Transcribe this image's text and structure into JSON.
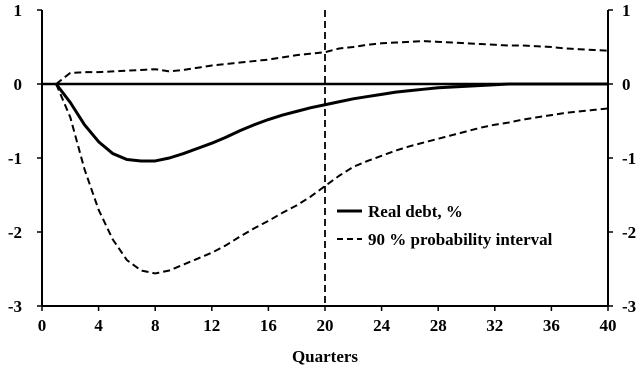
{
  "chart_data": {
    "type": "line",
    "title": "",
    "xlabel": "Quarters",
    "ylabel": "",
    "xlim": [
      0,
      40
    ],
    "ylim": [
      -3,
      1
    ],
    "x_ticks": [
      0,
      4,
      8,
      12,
      16,
      20,
      24,
      28,
      32,
      36,
      40
    ],
    "y_ticks": [
      1,
      0,
      -1,
      -2,
      -3
    ],
    "y_tick_labels_left": [
      "1",
      "0",
      "-1",
      "-2",
      "-3"
    ],
    "y_tick_labels_right": [
      "1",
      "0",
      "-1",
      "-2",
      "-3"
    ],
    "grid": false,
    "legend_position": "lower-right",
    "reference_lines": {
      "horizontal_zero": 0,
      "vertical_dashed_x": 20
    },
    "series": [
      {
        "name": "Real debt, %",
        "style": "solid",
        "color": "#000000",
        "x": [
          1,
          2,
          3,
          4,
          5,
          6,
          7,
          8,
          9,
          10,
          11,
          12,
          13,
          14,
          15,
          16,
          17,
          18,
          19,
          20,
          21,
          22,
          23,
          24,
          25,
          26,
          27,
          28,
          29,
          30,
          31,
          32,
          33,
          34,
          35,
          36,
          37,
          38,
          39,
          40
        ],
        "y": [
          0,
          -0.25,
          -0.55,
          -0.78,
          -0.94,
          -1.02,
          -1.04,
          -1.04,
          -1.0,
          -0.94,
          -0.87,
          -0.8,
          -0.72,
          -0.63,
          -0.55,
          -0.48,
          -0.42,
          -0.37,
          -0.32,
          -0.28,
          -0.24,
          -0.2,
          -0.17,
          -0.14,
          -0.11,
          -0.09,
          -0.07,
          -0.05,
          -0.04,
          -0.03,
          -0.02,
          -0.01,
          0,
          0,
          0,
          0,
          0,
          0,
          0,
          0
        ]
      },
      {
        "name": "90 % probability interval",
        "style": "dashed",
        "color": "#000000",
        "x": [
          1,
          2,
          3,
          4,
          5,
          6,
          7,
          8,
          9,
          10,
          11,
          12,
          13,
          14,
          15,
          16,
          17,
          18,
          19,
          20,
          21,
          22,
          23,
          24,
          25,
          26,
          27,
          28,
          29,
          30,
          31,
          32,
          33,
          34,
          35,
          36,
          37,
          38,
          39,
          40
        ],
        "y": [
          0,
          0.15,
          0.16,
          0.16,
          0.17,
          0.18,
          0.19,
          0.2,
          0.17,
          0.19,
          0.22,
          0.25,
          0.27,
          0.29,
          0.31,
          0.33,
          0.36,
          0.39,
          0.41,
          0.43,
          0.48,
          0.5,
          0.53,
          0.55,
          0.56,
          0.57,
          0.58,
          0.57,
          0.56,
          0.55,
          0.54,
          0.53,
          0.52,
          0.52,
          0.51,
          0.5,
          0.48,
          0.47,
          0.46,
          0.45
        ]
      },
      {
        "name": "",
        "style": "dashed",
        "color": "#000000",
        "x": [
          1,
          2,
          3,
          4,
          5,
          6,
          7,
          8,
          9,
          10,
          11,
          12,
          13,
          14,
          15,
          16,
          17,
          18,
          19,
          20,
          21,
          22,
          23,
          24,
          25,
          26,
          27,
          28,
          29,
          30,
          31,
          32,
          33,
          34,
          35,
          36,
          37,
          38,
          39,
          40
        ],
        "y": [
          0,
          -0.45,
          -1.15,
          -1.7,
          -2.1,
          -2.38,
          -2.52,
          -2.56,
          -2.52,
          -2.44,
          -2.36,
          -2.28,
          -2.18,
          -2.06,
          -1.95,
          -1.85,
          -1.74,
          -1.64,
          -1.52,
          -1.38,
          -1.24,
          -1.12,
          -1.04,
          -0.97,
          -0.9,
          -0.84,
          -0.79,
          -0.74,
          -0.69,
          -0.64,
          -0.59,
          -0.55,
          -0.52,
          -0.48,
          -0.45,
          -0.42,
          -0.39,
          -0.37,
          -0.35,
          -0.33
        ]
      }
    ],
    "legend": [
      {
        "label": "Real debt, %",
        "style": "solid"
      },
      {
        "label": "90 % probability interval",
        "style": "dashed"
      }
    ]
  }
}
